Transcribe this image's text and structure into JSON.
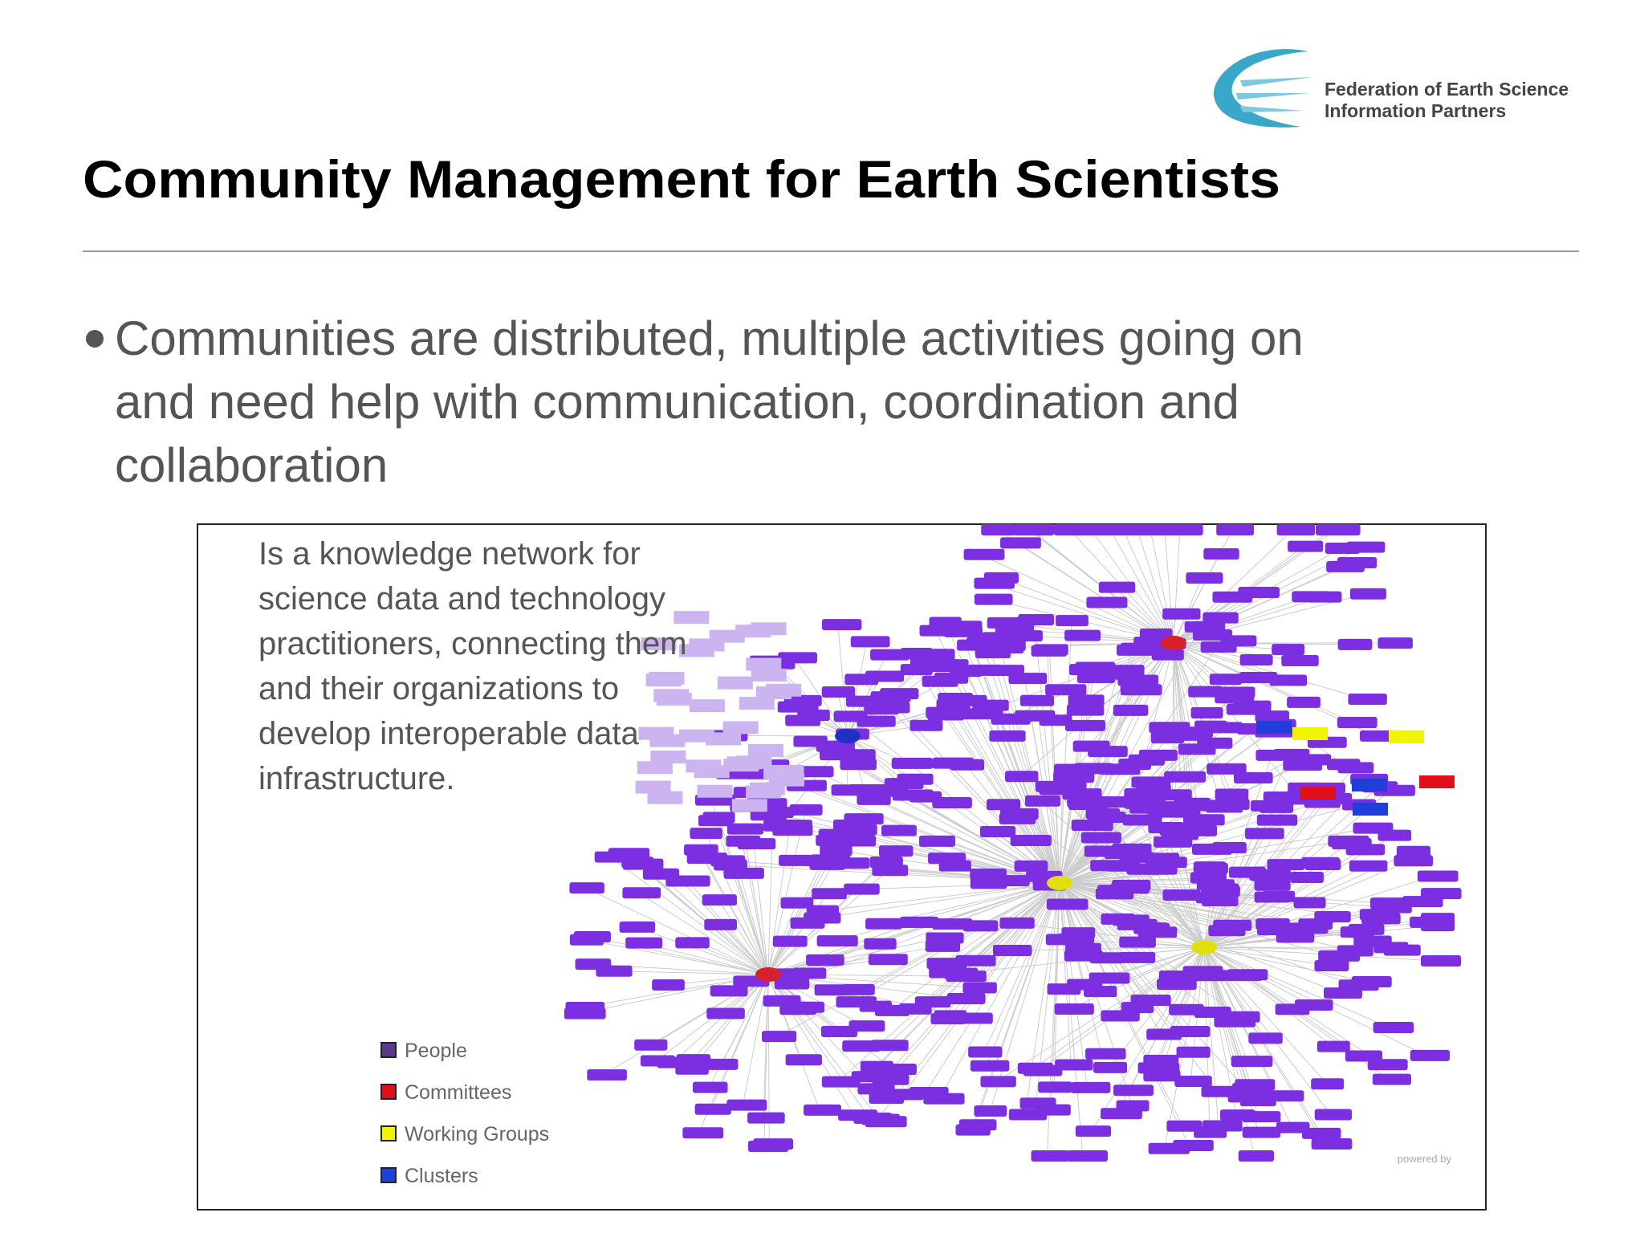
{
  "header": {
    "title": "Community Management for Earth Scientists",
    "logo": {
      "lines": [
        "Federation of Earth Science",
        "Information Partners"
      ]
    }
  },
  "bullet": {
    "lines": [
      "Communities are distributed, multiple activities going on",
      "and need help with communication, coordination and",
      "collaboration"
    ]
  },
  "figure": {
    "caption_lines": [
      "Is a knowledge network for",
      "science data and technology",
      "practitioners, connecting them",
      "and their organizations to",
      "develop interoperable data",
      "infrastructure."
    ],
    "legend": [
      {
        "label": "People",
        "color": "#5b3a8c"
      },
      {
        "label": "Committees",
        "color": "#e0101a"
      },
      {
        "label": "Working Groups",
        "color": "#f2f20a"
      },
      {
        "label": "Clusters",
        "color": "#1f3fd8"
      }
    ],
    "footer": "powered by"
  }
}
